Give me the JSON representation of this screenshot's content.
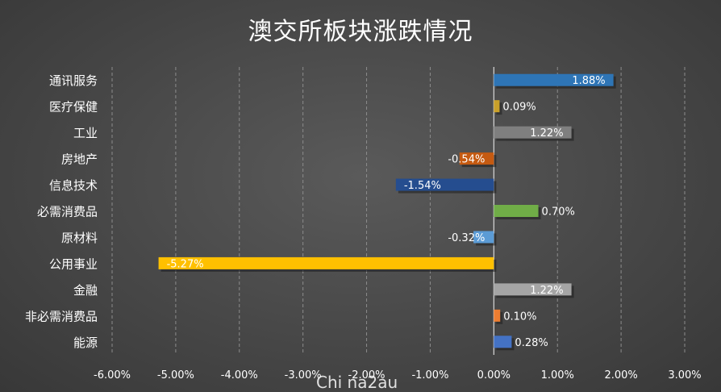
{
  "chart_data": {
    "type": "bar",
    "orientation": "horizontal",
    "title": "澳交所板块涨跌情况",
    "categories": [
      "通讯服务",
      "医疗保健",
      "工业",
      "房地产",
      "信息技术",
      "必需消费品",
      "原材料",
      "公用事业",
      "金融",
      "非必需消费品",
      "能源"
    ],
    "values": [
      1.88,
      0.09,
      1.22,
      -0.54,
      -1.54,
      0.7,
      -0.32,
      -5.27,
      1.22,
      0.1,
      0.28
    ],
    "value_labels": [
      "1.88%",
      "0.09%",
      "1.22%",
      "-0.54%",
      "-1.54%",
      "0.70%",
      "-0.32%",
      "-5.27%",
      "1.22%",
      "0.10%",
      "0.28%"
    ],
    "colors": [
      "#2e75b6",
      "#c9a02a",
      "#7f7f7f",
      "#c55a11",
      "#254d8f",
      "#70ad47",
      "#5b9bd5",
      "#ffc000",
      "#a5a5a5",
      "#ed7d31",
      "#4472c4"
    ],
    "xlim": [
      -6,
      3
    ],
    "xticks": [
      -6,
      -5,
      -4,
      -3,
      -2,
      -1,
      0,
      1,
      2,
      3
    ],
    "xtick_labels": [
      "-6.00%",
      "-5.00%",
      "-4.00%",
      "-3.00%",
      "-2.00%",
      "-1.00%",
      "0.00%",
      "1.00%",
      "2.00%",
      "3.00%"
    ],
    "grid": "vertical-dashed",
    "legend": "none",
    "xlabel": "",
    "ylabel": ""
  },
  "watermark": "Chi na2au"
}
